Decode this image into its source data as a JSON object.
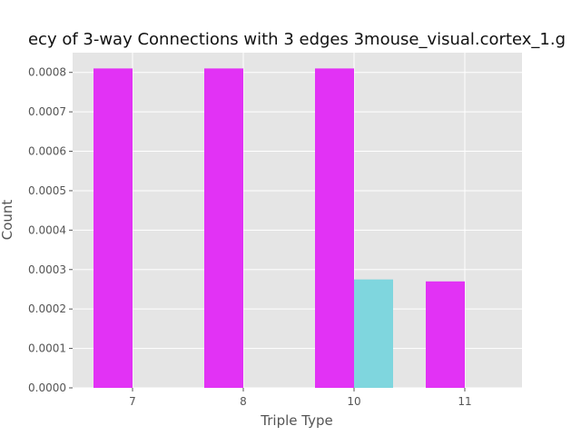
{
  "chart_data": {
    "type": "bar",
    "title": "ecy of 3-way Connections with 3 edges 3mouse_visual.cortex_1.g",
    "xlabel": "Triple Type",
    "ylabel": "Count",
    "categories": [
      "7",
      "8",
      "10",
      "11"
    ],
    "ylim": [
      0,
      0.00085
    ],
    "yticks": [
      "0.0000",
      "0.0001",
      "0.0002",
      "0.0003",
      "0.0004",
      "0.0005",
      "0.0006",
      "0.0007",
      "0.0008"
    ],
    "ytick_values": [
      0,
      0.0001,
      0.0002,
      0.0003,
      0.0004,
      0.0005,
      0.0006,
      0.0007,
      0.0008
    ],
    "grid": true,
    "series": [
      {
        "color": "#e232f5",
        "values": [
          0.00081,
          0.00081,
          0.00081,
          0.00027
        ]
      },
      {
        "color": "#7fd6de",
        "values": [
          0,
          0,
          0.000275,
          0
        ]
      }
    ],
    "background": "#e5e5e5",
    "grid_color": "#ffffff"
  }
}
